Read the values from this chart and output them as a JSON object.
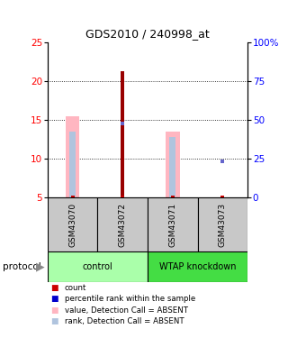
{
  "title": "GDS2010 / 240998_at",
  "samples": [
    "GSM43070",
    "GSM43072",
    "GSM43071",
    "GSM43073"
  ],
  "ylim_left": [
    5,
    25
  ],
  "ylim_right": [
    0,
    100
  ],
  "yticks_left": [
    5,
    10,
    15,
    20,
    25
  ],
  "yticks_right": [
    0,
    25,
    50,
    75,
    100
  ],
  "value_bars": [
    15.5,
    null,
    13.5,
    null
  ],
  "rank_bars": [
    13.5,
    null,
    12.8,
    null
  ],
  "count_bar": [
    null,
    21.3,
    null,
    null
  ],
  "count_dots": [
    5.05,
    5.05,
    5.05,
    5.05
  ],
  "rank_dots_y": [
    null,
    14.6,
    null,
    9.7
  ],
  "rank_dots_right": [
    null,
    48,
    null,
    24
  ],
  "bar_color_value": "#FFB6C1",
  "bar_color_rank": "#B0C4DE",
  "bar_color_count": "#990000",
  "dot_color_count": "#CC0000",
  "dot_color_rank": "#6666CC",
  "sample_box_color": "#C8C8C8",
  "group_light_green": "#AAFFAA",
  "group_dark_green": "#44DD44",
  "legend_items": [
    {
      "color": "#CC0000",
      "label": "count",
      "marker": "s"
    },
    {
      "color": "#0000CC",
      "label": "percentile rank within the sample",
      "marker": "s"
    },
    {
      "color": "#FFB6C1",
      "label": "value, Detection Call = ABSENT",
      "marker": "s"
    },
    {
      "color": "#B0C4DE",
      "label": "rank, Detection Call = ABSENT",
      "marker": "s"
    }
  ]
}
